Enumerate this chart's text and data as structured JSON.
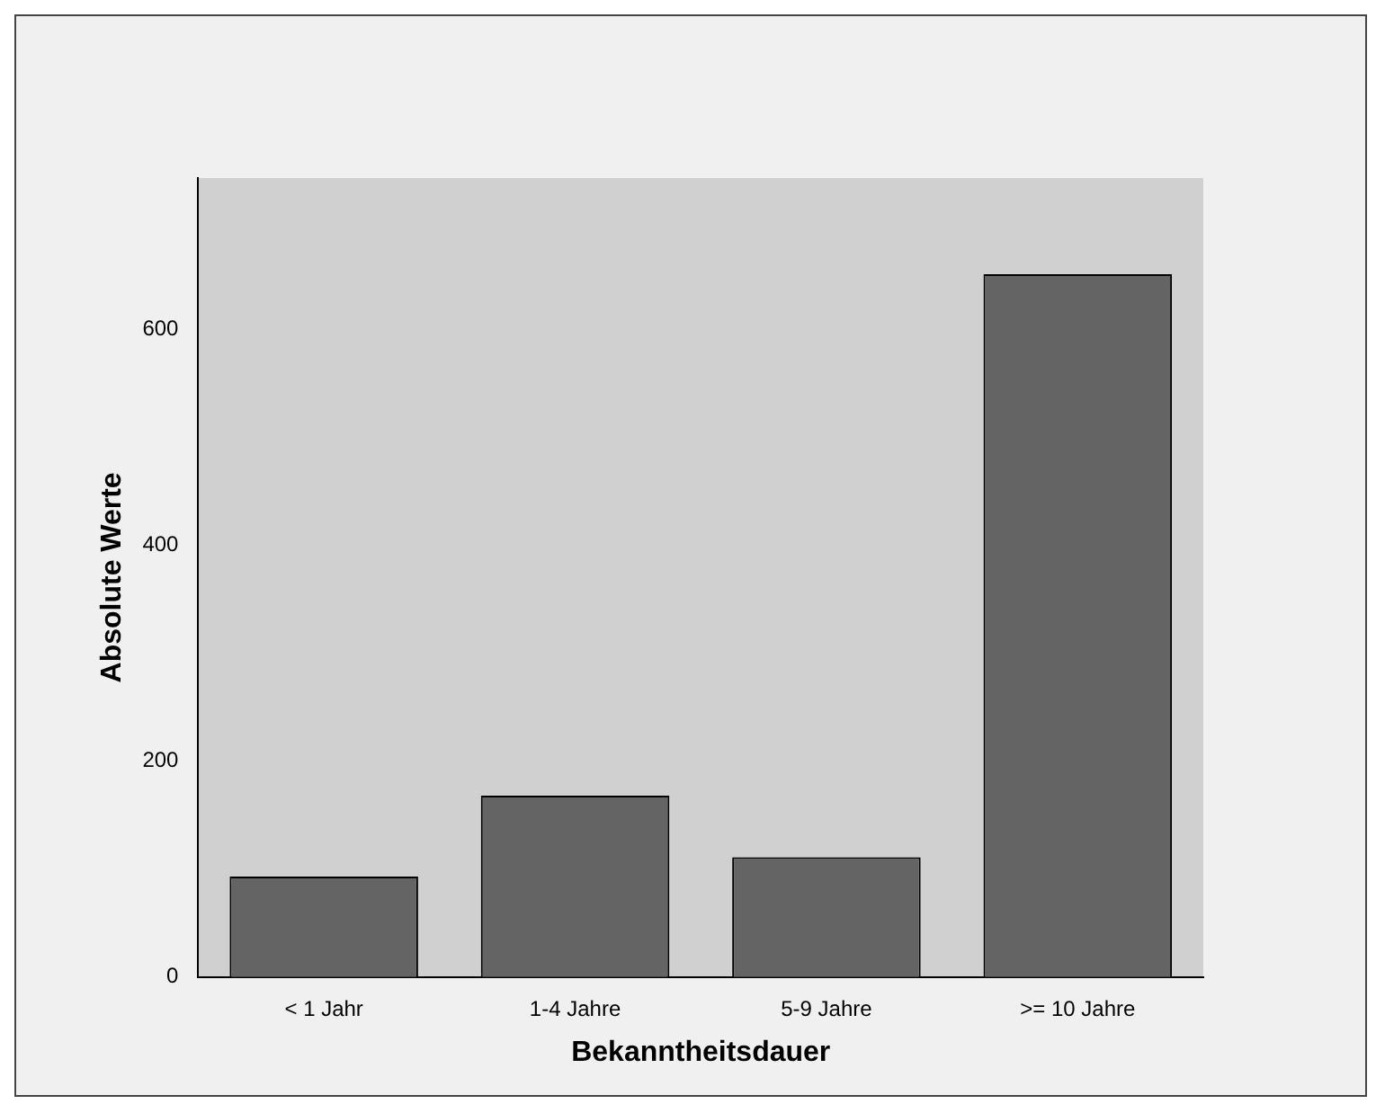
{
  "chart_data": {
    "type": "bar",
    "xlabel": "Bekanntheitsdauer",
    "ylabel": "Absolute Werte",
    "categories": [
      "< 1 Jahr",
      "1-4 Jahre",
      "5-9 Jahre",
      ">= 10 Jahre"
    ],
    "values": [
      93,
      168,
      111,
      651
    ],
    "color": "#646464",
    "ylim": [
      0,
      740
    ],
    "yticks": [
      0,
      200,
      400,
      600
    ],
    "grid": false,
    "legend": false
  }
}
